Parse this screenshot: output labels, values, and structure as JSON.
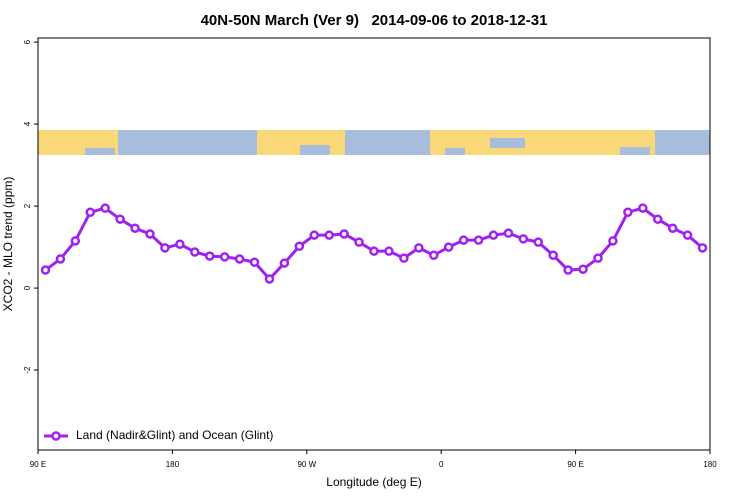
{
  "chart_data": {
    "type": "line",
    "title": "40N-50N March (Ver 9)   2014-09-06 to 2018-12-31",
    "x_label": "Longitude (deg E)",
    "y_label": "XCO2 - MLO trend (ppm)",
    "x": [
      95,
      105,
      115,
      125,
      135,
      145,
      155,
      165,
      175,
      185,
      195,
      205,
      215,
      225,
      235,
      245,
      255,
      265,
      275,
      285,
      295,
      305,
      315,
      325,
      335,
      345,
      355,
      365,
      375,
      385,
      395,
      405,
      415,
      425,
      435,
      445,
      455,
      465,
      475,
      485,
      495,
      505,
      515,
      525,
      535
    ],
    "series": [
      {
        "name": "Land (Nadir&Glint) and Ocean (Glint)",
        "color": "#a020f0",
        "values": [
          0.44,
          0.71,
          1.15,
          1.85,
          1.95,
          1.68,
          1.46,
          1.32,
          0.98,
          1.07,
          0.88,
          0.78,
          0.76,
          0.71,
          0.63,
          0.22,
          0.61,
          1.02,
          1.29,
          1.29,
          1.32,
          1.12,
          0.9,
          0.9,
          0.73,
          0.98,
          0.8,
          1.0,
          1.17,
          1.17,
          1.29,
          1.34,
          1.2,
          1.12,
          0.8,
          0.44,
          0.46,
          0.73,
          1.15,
          1.85,
          1.95,
          1.68,
          1.46,
          1.29,
          0.98
        ]
      }
    ],
    "xlim": [
      90,
      540
    ],
    "xticks": [
      {
        "value": 90,
        "label": "90 E"
      },
      {
        "value": 180,
        "label": "180"
      },
      {
        "value": 270,
        "label": "90 W"
      },
      {
        "value": 360,
        "label": "0"
      },
      {
        "value": 450,
        "label": "90 E"
      },
      {
        "value": 540,
        "label": "180"
      }
    ],
    "ylim": [
      -3.95,
      6.1
    ],
    "yticks": [
      6,
      4,
      2,
      0,
      -2
    ],
    "legend": "bottom-left"
  }
}
